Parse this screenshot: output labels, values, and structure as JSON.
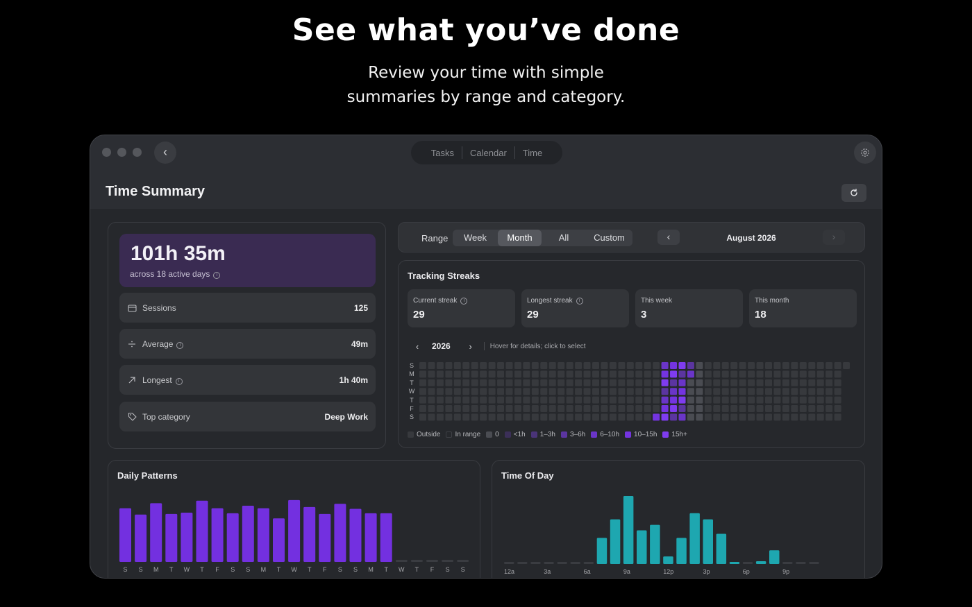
{
  "hero": {
    "title": "See what you’ve done",
    "subtitle_line1": "Review your time with simple",
    "subtitle_line2": "summaries by range and category."
  },
  "window": {
    "nav_tabs": [
      "Tasks",
      "Calendar",
      "Time"
    ],
    "page_title": "Time Summary"
  },
  "summary": {
    "total": "101h 35m",
    "total_sub": "across 18 active days",
    "rows": [
      {
        "label": "Sessions",
        "value": "125",
        "icon": "calendar-icon"
      },
      {
        "label": "Average",
        "value": "49m",
        "icon": "divide-icon"
      },
      {
        "label": "Longest",
        "value": "1h 40m",
        "icon": "arrow-up-right-icon"
      },
      {
        "label": "Top category",
        "value": "Deep Work",
        "icon": "tag-icon"
      }
    ]
  },
  "range": {
    "label": "Range",
    "options": [
      "Week",
      "Month",
      "All",
      "Custom"
    ],
    "selected": "Month",
    "period": "August 2026"
  },
  "streaks": {
    "title": "Tracking Streaks",
    "boxes": [
      {
        "label": "Current streak",
        "value": "29",
        "info": true
      },
      {
        "label": "Longest streak",
        "value": "29",
        "info": true
      },
      {
        "label": "This week",
        "value": "3",
        "info": false
      },
      {
        "label": "This month",
        "value": "18",
        "info": false
      }
    ],
    "year": "2026",
    "hint": "Hover for details; click to select",
    "day_labels": [
      "S",
      "M",
      "T",
      "W",
      "T",
      "F",
      "S"
    ],
    "legend": [
      {
        "label": "Outside",
        "color": "#37393d"
      },
      {
        "label": "In range",
        "color": "#26282c"
      },
      {
        "label": "0",
        "color": "#4a4c52"
      },
      {
        "label": "<1h",
        "color": "#3b2f58"
      },
      {
        "label": "1–3h",
        "color": "#4a3478"
      },
      {
        "label": "3–6h",
        "color": "#5b35a0"
      },
      {
        "label": "6–10h",
        "color": "#6a35c8"
      },
      {
        "label": "10–15h",
        "color": "#7434e0"
      },
      {
        "label": "15h+",
        "color": "#7f3cf0"
      }
    ]
  },
  "colors": {
    "accent_purple": "#7330e0",
    "accent_teal": "#1ea7b0",
    "hero_box": "#3a2b52"
  },
  "daily": {
    "title": "Daily Patterns",
    "chart_data": {
      "type": "bar",
      "categories": [
        "S",
        "S",
        "M",
        "T",
        "W",
        "T",
        "F",
        "S",
        "S",
        "M",
        "T",
        "W",
        "T",
        "F",
        "S",
        "S",
        "M",
        "T",
        "W",
        "T",
        "F",
        "S",
        "S"
      ],
      "values": [
        85,
        75,
        93,
        76,
        78,
        97,
        85,
        77,
        89,
        85,
        69,
        98,
        87,
        76,
        92,
        84,
        77,
        77,
        0,
        0,
        0,
        0,
        0
      ],
      "ylim": [
        0,
        100
      ]
    }
  },
  "tod": {
    "title": "Time Of Day",
    "chart_data": {
      "type": "bar",
      "categories": [
        "12a",
        "",
        "",
        "3a",
        "",
        "",
        "6a",
        "",
        "",
        "9a",
        "",
        "",
        "12p",
        "",
        "",
        "3p",
        "",
        "",
        "6p",
        "",
        "",
        "9p",
        "",
        ""
      ],
      "values": [
        0,
        0,
        0,
        0,
        0,
        0,
        0,
        38,
        65,
        99,
        49,
        57,
        11,
        38,
        74,
        65,
        44,
        3,
        0,
        4,
        20,
        0,
        0,
        0
      ],
      "ylim": [
        0,
        100
      ]
    }
  }
}
